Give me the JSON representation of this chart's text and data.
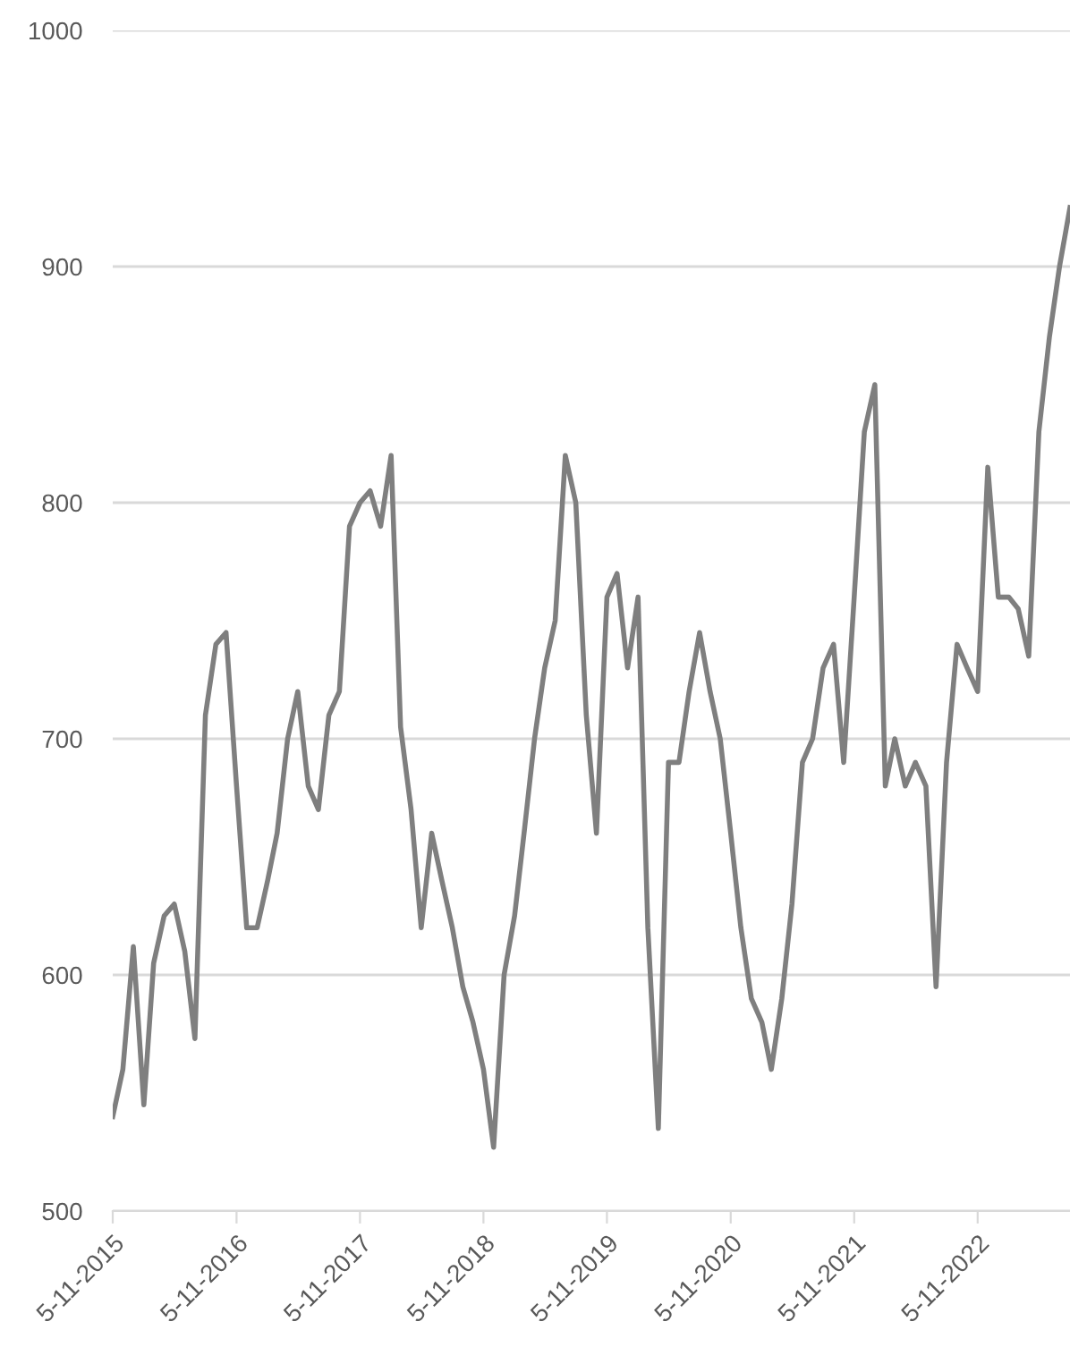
{
  "chart_data": {
    "type": "line",
    "x": [
      "2015-11-05",
      "2015-12-05",
      "2016-01-05",
      "2016-02-05",
      "2016-03-05",
      "2016-04-05",
      "2016-05-05",
      "2016-06-05",
      "2016-07-05",
      "2016-08-05",
      "2016-09-05",
      "2016-10-05",
      "2016-11-05",
      "2016-12-05",
      "2017-01-05",
      "2017-02-05",
      "2017-03-05",
      "2017-04-05",
      "2017-05-05",
      "2017-06-05",
      "2017-07-05",
      "2017-08-05",
      "2017-09-05",
      "2017-10-05",
      "2017-11-05",
      "2017-12-05",
      "2018-01-05",
      "2018-02-05",
      "2018-03-05",
      "2018-04-05",
      "2018-05-05",
      "2018-06-05",
      "2018-07-05",
      "2018-08-05",
      "2018-09-05",
      "2018-10-05",
      "2018-11-05",
      "2018-12-05",
      "2019-01-05",
      "2019-02-05",
      "2019-03-05",
      "2019-04-05",
      "2019-05-05",
      "2019-06-05",
      "2019-07-05",
      "2019-08-05",
      "2019-09-05",
      "2019-10-05",
      "2019-11-05",
      "2019-12-05",
      "2020-01-05",
      "2020-02-05",
      "2020-03-05",
      "2020-04-05",
      "2020-05-05",
      "2020-06-05",
      "2020-07-05",
      "2020-08-05",
      "2020-09-05",
      "2020-10-05",
      "2020-11-05",
      "2020-12-05",
      "2021-01-05",
      "2021-02-05",
      "2021-03-05",
      "2021-04-05",
      "2021-05-05",
      "2021-06-05",
      "2021-07-05",
      "2021-08-05",
      "2021-09-05",
      "2021-10-05",
      "2021-11-05",
      "2021-12-05",
      "2022-01-05",
      "2022-02-05",
      "2022-03-05",
      "2022-04-05",
      "2022-05-05",
      "2022-06-05",
      "2022-07-05",
      "2022-08-05",
      "2022-09-05",
      "2022-10-05",
      "2022-11-05",
      "2022-12-05",
      "2023-01-05",
      "2023-02-05",
      "2023-03-05",
      "2023-04-05",
      "2023-05-05",
      "2023-06-05",
      "2023-07-05",
      "2023-08-05"
    ],
    "series": [
      {
        "color": "#7f7f7f",
        "values": [
          540,
          560,
          612,
          545,
          605,
          625,
          630,
          610,
          573,
          710,
          740,
          745,
          680,
          620,
          620,
          640,
          660,
          700,
          720,
          680,
          670,
          710,
          720,
          790,
          800,
          805,
          790,
          820,
          705,
          670,
          620,
          660,
          640,
          620,
          595,
          580,
          560,
          527,
          600,
          625,
          660,
          700,
          730,
          750,
          820,
          800,
          710,
          660,
          760,
          770,
          730,
          760,
          620,
          535,
          690,
          690,
          720,
          745,
          720,
          700,
          660,
          620,
          590,
          580,
          560,
          590,
          630,
          690,
          700,
          730,
          740,
          690,
          760,
          830,
          850,
          680,
          700,
          680,
          690,
          680,
          595,
          690,
          740,
          730,
          720,
          815,
          760,
          760,
          755,
          735,
          830,
          870,
          900,
          925
        ]
      }
    ],
    "xlim": [
      "2015-11-05",
      "2023-08-05"
    ],
    "xticks": [
      {
        "value": "2015-11-05",
        "label": "5-11-2015"
      },
      {
        "value": "2016-11-05",
        "label": "5-11-2016"
      },
      {
        "value": "2017-11-05",
        "label": "5-11-2017"
      },
      {
        "value": "2018-11-05",
        "label": "5-11-2018"
      },
      {
        "value": "2019-11-05",
        "label": "5-11-2019"
      },
      {
        "value": "2020-11-05",
        "label": "5-11-2020"
      },
      {
        "value": "2021-11-05",
        "label": "5-11-2021"
      },
      {
        "value": "2022-11-05",
        "label": "5-11-2022"
      }
    ],
    "ylim": [
      500,
      1000
    ],
    "yticks": [
      500,
      600,
      700,
      800,
      900,
      1000
    ],
    "grid": "y",
    "marker": "none",
    "line_style": "solid"
  }
}
